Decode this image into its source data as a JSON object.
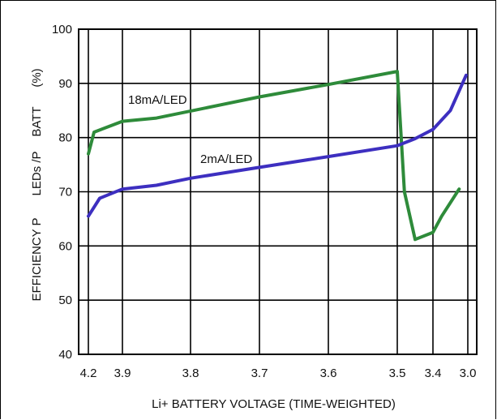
{
  "chart_data": {
    "type": "line",
    "title": "",
    "xlabel": "Li+ BATTERY VOLTAGE (TIME-WEIGHTED)",
    "ylabel": "EFFICIENCY P LEDs /P BATT (%)",
    "ylabel_parts": [
      "EFFICIENCY P",
      "LEDs /P",
      "BATT",
      "(%)"
    ],
    "xlim": [
      4.25,
      3.0
    ],
    "ylim": [
      40,
      100
    ],
    "x_ticks": [
      4.2,
      3.9,
      3.8,
      3.7,
      3.6,
      3.5,
      3.4,
      3.0
    ],
    "x_tick_labels": [
      "4.2",
      "3.9",
      "3.8",
      "3.7",
      "3.6",
      "3.5",
      "3.4",
      "3.0"
    ],
    "y_ticks": [
      40,
      50,
      60,
      70,
      80,
      90,
      100
    ],
    "y_tick_labels": [
      "40",
      "50",
      "60",
      "70",
      "80",
      "90",
      "100"
    ],
    "grid": true,
    "line_color_18": "#2e8b3a",
    "line_color_2": "#3d2fc0",
    "series": [
      {
        "name": "18mA/LED",
        "color": "#2e8b3a",
        "points": [
          [
            4.2,
            77
          ],
          [
            4.15,
            81
          ],
          [
            3.9,
            83
          ],
          [
            3.85,
            83.6
          ],
          [
            3.7,
            87.5
          ],
          [
            3.6,
            89.8
          ],
          [
            3.5,
            92.2
          ],
          [
            3.48,
            70
          ],
          [
            3.45,
            61.2
          ],
          [
            3.4,
            62.5
          ],
          [
            3.3,
            65.5
          ],
          [
            3.1,
            70.5
          ]
        ]
      },
      {
        "name": "2mA/LED",
        "color": "#3d2fc0",
        "points": [
          [
            4.2,
            65.5
          ],
          [
            4.1,
            68.8
          ],
          [
            3.9,
            70.5
          ],
          [
            3.85,
            71.2
          ],
          [
            3.8,
            72.5
          ],
          [
            3.7,
            74.5
          ],
          [
            3.6,
            76.5
          ],
          [
            3.5,
            78.5
          ],
          [
            3.45,
            79.8
          ],
          [
            3.4,
            81.5
          ],
          [
            3.2,
            85
          ],
          [
            3.02,
            91.5
          ]
        ]
      }
    ],
    "annotations": [
      {
        "text": "18mA/LED",
        "series": "18mA/LED"
      },
      {
        "text": "2mA/LED",
        "series": "2mA/LED"
      }
    ]
  }
}
